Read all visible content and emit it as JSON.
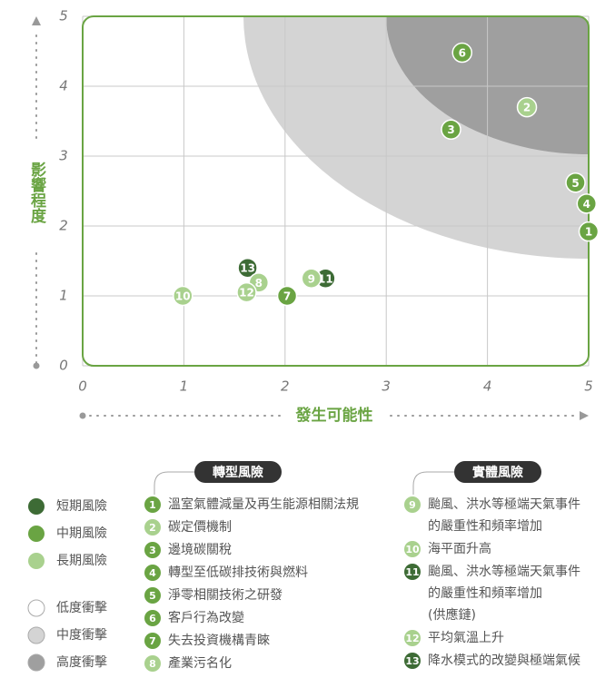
{
  "chart_data": {
    "type": "scatter",
    "x_label": "發生可能性",
    "y_label": "影響程度",
    "xlim": [
      0,
      5
    ],
    "ylim": [
      0,
      5
    ],
    "xticks": [
      0,
      1,
      2,
      3,
      4,
      5
    ],
    "yticks": [
      0,
      1,
      2,
      3,
      4,
      5
    ],
    "grid": true,
    "series": [
      {
        "name": "短期風險",
        "color": "#3d6b35",
        "labels": [
          "11",
          "13"
        ],
        "x": [
          2.4,
          1.63
        ],
        "y": [
          1.25,
          1.4
        ]
      },
      {
        "name": "中期風險",
        "color": "#6aa443",
        "labels": [
          "1",
          "3",
          "4",
          "5",
          "6",
          "7"
        ],
        "x": [
          5,
          3.64,
          4.98,
          4.87,
          3.75,
          2.02
        ],
        "y": [
          1.92,
          3.38,
          2.32,
          2.62,
          4.48,
          1.0
        ]
      },
      {
        "name": "長期風險",
        "color": "#a9d18e",
        "labels": [
          "2",
          "8",
          "9",
          "10",
          "12"
        ],
        "x": [
          4.39,
          1.74,
          2.26,
          0.99,
          1.62
        ],
        "y": [
          3.7,
          1.19,
          1.25,
          1.0,
          1.05
        ]
      }
    ],
    "impact_legend": [
      {
        "name": "低度衝擊",
        "color": "#ffffff"
      },
      {
        "name": "中度衝擊",
        "color": "#d4d4d4"
      },
      {
        "name": "高度衝擊",
        "color": "#9f9f9f"
      }
    ]
  },
  "risk_groups": [
    {
      "title": "轉型風險",
      "items": [
        {
          "number": "1",
          "color": "#6aa443",
          "lines": [
            "溫室氣體減量及再生能源相關法規"
          ]
        },
        {
          "number": "2",
          "color": "#a9d18e",
          "lines": [
            "碳定價機制"
          ]
        },
        {
          "number": "3",
          "color": "#6aa443",
          "lines": [
            "邊境碳關稅"
          ]
        },
        {
          "number": "4",
          "color": "#6aa443",
          "lines": [
            "轉型至低碳排技術與燃料"
          ]
        },
        {
          "number": "5",
          "color": "#6aa443",
          "lines": [
            "淨零相關技術之研發"
          ]
        },
        {
          "number": "6",
          "color": "#6aa443",
          "lines": [
            "客戶行為改變"
          ]
        },
        {
          "number": "7",
          "color": "#6aa443",
          "lines": [
            "失去投資機構青睞"
          ]
        },
        {
          "number": "8",
          "color": "#a9d18e",
          "lines": [
            "產業污名化"
          ]
        }
      ]
    },
    {
      "title": "實體風險",
      "items": [
        {
          "number": "9",
          "color": "#a9d18e",
          "lines": [
            "颱風、洪水等極端天氣事件",
            "的嚴重性和頻率增加"
          ]
        },
        {
          "number": "10",
          "color": "#a9d18e",
          "lines": [
            "海平面升高"
          ]
        },
        {
          "number": "11",
          "color": "#3d6b35",
          "lines": [
            "颱風、洪水等極端天氣事件",
            "的嚴重性和頻率增加",
            "(供應鏈)"
          ]
        },
        {
          "number": "12",
          "color": "#a9d18e",
          "lines": [
            "平均氣溫上升"
          ]
        },
        {
          "number": "13",
          "color": "#3d6b35",
          "lines": [
            "降水模式的改變與極端氣候"
          ]
        }
      ]
    }
  ]
}
